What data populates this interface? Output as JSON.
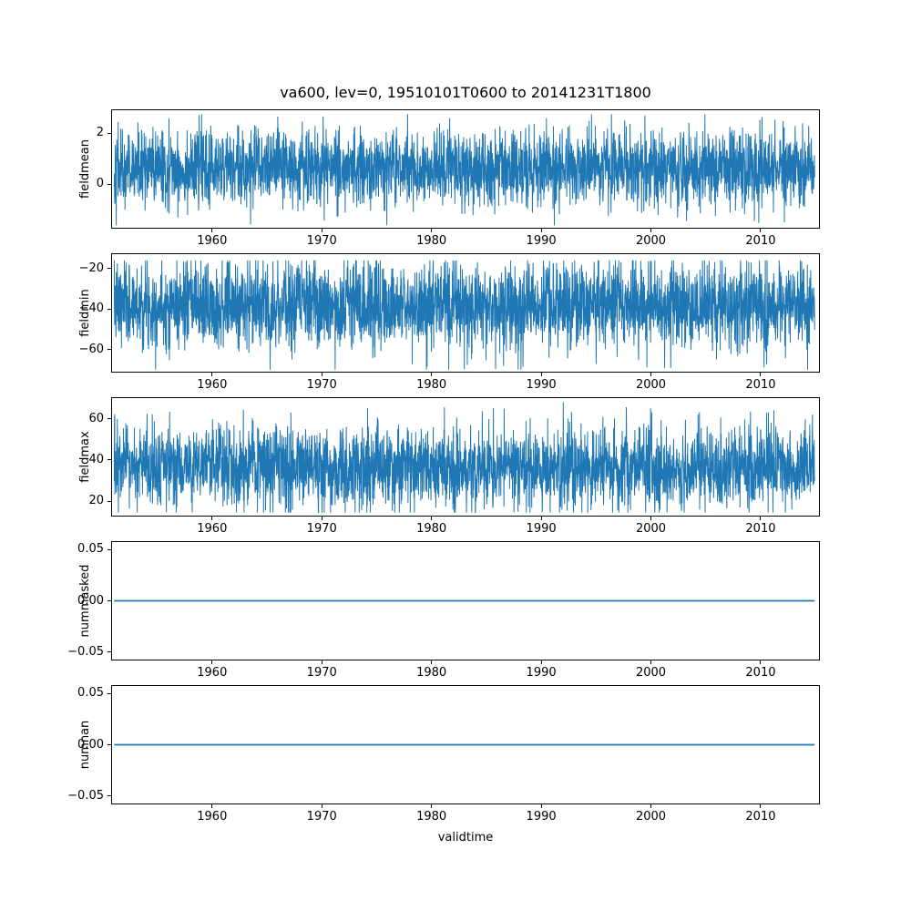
{
  "figure": {
    "title": "va600, lev=0, 19510101T0600 to 20141231T1800",
    "xlabel": "validtime",
    "background": "#ffffff",
    "line_color": "#1f77b4",
    "axis_color": "#000000",
    "xlim": [
      1950.8,
      2015.4
    ],
    "x_ticks": [
      {
        "v": 1960,
        "label": "1960"
      },
      {
        "v": 1970,
        "label": "1970"
      },
      {
        "v": 1980,
        "label": "1980"
      },
      {
        "v": 1990,
        "label": "1990"
      },
      {
        "v": 2000,
        "label": "2000"
      },
      {
        "v": 2010,
        "label": "2010"
      }
    ]
  },
  "chart_data": [
    {
      "type": "line",
      "ylabel": "fieldmean",
      "x_range": [
        1951.0,
        2015.0
      ],
      "ylim": [
        -1.7,
        2.9
      ],
      "yticks": [
        {
          "v": 2,
          "label": "2"
        },
        {
          "v": 0,
          "label": "0"
        }
      ],
      "grid": false,
      "legend": "none",
      "series": [
        {
          "name": "fieldmean",
          "kind": "gaussian-noise",
          "mean": 0.62,
          "sd": 0.75,
          "min": -1.6,
          "max": 2.75,
          "n_points": 3200,
          "seed": 42
        }
      ]
    },
    {
      "type": "line",
      "ylabel": "fieldmin",
      "x_range": [
        1951.0,
        2015.0
      ],
      "ylim": [
        -71,
        -13
      ],
      "yticks": [
        {
          "v": -20,
          "label": "−20"
        },
        {
          "v": -40,
          "label": "−40"
        },
        {
          "v": -60,
          "label": "−60"
        }
      ],
      "grid": false,
      "legend": "none",
      "series": [
        {
          "name": "fieldmin",
          "kind": "gaussian-noise",
          "mean": -38,
          "sd": 10.5,
          "min": -70,
          "max": -16,
          "n_points": 3200,
          "seed": 7
        }
      ]
    },
    {
      "type": "line",
      "ylabel": "fieldmax",
      "x_range": [
        1951.0,
        2015.0
      ],
      "ylim": [
        13,
        70
      ],
      "yticks": [
        {
          "v": 60,
          "label": "60"
        },
        {
          "v": 40,
          "label": "40"
        },
        {
          "v": 20,
          "label": "20"
        }
      ],
      "grid": false,
      "legend": "none",
      "series": [
        {
          "name": "fieldmax",
          "kind": "gaussian-noise",
          "mean": 36.5,
          "sd": 10,
          "min": 14.5,
          "max": 68,
          "n_points": 3200,
          "seed": 13
        }
      ]
    },
    {
      "type": "line",
      "ylabel": "nummasked",
      "x_range": [
        1951.0,
        2015.0
      ],
      "ylim": [
        -0.0575,
        0.0575
      ],
      "yticks": [
        {
          "v": 0.05,
          "label": "0.05"
        },
        {
          "v": 0,
          "label": "0.00"
        },
        {
          "v": -0.05,
          "label": "−0.05"
        }
      ],
      "grid": false,
      "legend": "none",
      "series": [
        {
          "name": "nummasked",
          "kind": "constant",
          "value": 0
        }
      ]
    },
    {
      "type": "line",
      "ylabel": "numnan",
      "x_range": [
        1951.0,
        2015.0
      ],
      "ylim": [
        -0.0575,
        0.0575
      ],
      "yticks": [
        {
          "v": 0.05,
          "label": "0.05"
        },
        {
          "v": 0,
          "label": "0.00"
        },
        {
          "v": -0.05,
          "label": "−0.05"
        }
      ],
      "grid": false,
      "legend": "none",
      "series": [
        {
          "name": "numnan",
          "kind": "constant",
          "value": 0
        }
      ]
    }
  ]
}
